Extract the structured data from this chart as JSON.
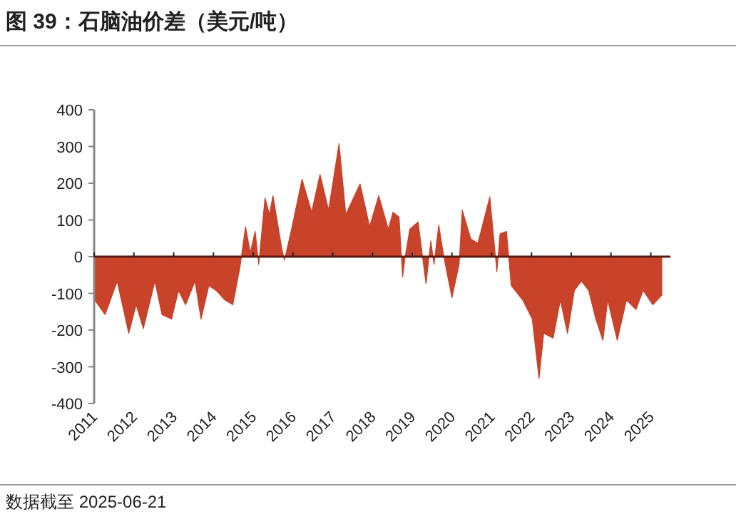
{
  "chart_data": {
    "type": "area",
    "title": "图 39：石脑油价差（美元/吨）",
    "annotations": [
      "数据截至 2025-06-21"
    ],
    "x": [
      "2011-01-05",
      "2011-04-12",
      "2011-08-01",
      "2011-11-15",
      "2012-01-22",
      "2012-03-28",
      "2012-07-12",
      "2012-09-16",
      "2012-12-12",
      "2013-02-14",
      "2013-04-20",
      "2013-07-16",
      "2013-09-09",
      "2013-11-20",
      "2014-01-26",
      "2014-04-16",
      "2014-06-28",
      "2014-09-02",
      "2014-10-23",
      "2014-12-06",
      "2015-01-19",
      "2015-02-21",
      "2015-04-20",
      "2015-05-30",
      "2015-07-02",
      "2015-09-24",
      "2015-10-16",
      "2015-12-20",
      "2016-03-25",
      "2016-06-21",
      "2016-09-06",
      "2016-11-24",
      "2017-02-28",
      "2017-05-01",
      "2017-09-09",
      "2017-12-06",
      "2018-02-28",
      "2018-05-26",
      "2018-07-09",
      "2018-09-02",
      "2018-10-05",
      "2018-10-27",
      "2018-12-10",
      "2019-02-24",
      "2019-05-08",
      "2019-06-21",
      "2019-07-20",
      "2019-09-02",
      "2019-10-16",
      "2020-01-01",
      "2020-03-07",
      "2020-04-05",
      "2020-06-21",
      "2020-08-26",
      "2020-12-14",
      "2021-02-17",
      "2021-03-18",
      "2021-05-16",
      "2021-06-29",
      "2021-10-12",
      "2022-01-08",
      "2022-03-11",
      "2022-04-23",
      "2022-07-19",
      "2022-09-23",
      "2022-11-28",
      "2023-01-30",
      "2023-04-05",
      "2023-06-10",
      "2023-08-15",
      "2023-10-19",
      "2023-12-02",
      "2024-02-28",
      "2024-05-22",
      "2024-08-18",
      "2024-10-23",
      "2025-01-19",
      "2025-04-12"
    ],
    "series": [
      {
        "color": "#c8432a",
        "values": [
          -118,
          -158,
          -67,
          -209,
          -131,
          -196,
          -67,
          -158,
          -170,
          -92,
          -131,
          -67,
          -170,
          -79,
          -92,
          -118,
          -131,
          -28,
          82,
          10,
          69,
          -21,
          160,
          115,
          166,
          17,
          -9,
          75,
          211,
          121,
          224,
          127,
          308,
          115,
          198,
          82,
          166,
          75,
          121,
          108,
          -55,
          -3,
          75,
          95,
          -74,
          43,
          -21,
          86,
          4,
          -112,
          -21,
          127,
          49,
          36,
          163,
          -41,
          62,
          69,
          -79,
          -118,
          -170,
          -332,
          -209,
          -222,
          -118,
          -209,
          -92,
          -67,
          -92,
          -170,
          -228,
          -118,
          -228,
          -118,
          -144,
          -92,
          -131,
          -105
        ]
      }
    ],
    "xlim": [
      "2011-01-01",
      "2025-06-30"
    ],
    "xticks": [
      {
        "value": "2011-01-01",
        "label": "2011"
      },
      {
        "value": "2012-01-01",
        "label": "2012"
      },
      {
        "value": "2013-01-01",
        "label": "2013"
      },
      {
        "value": "2014-01-01",
        "label": "2014"
      },
      {
        "value": "2015-01-01",
        "label": "2015"
      },
      {
        "value": "2016-01-01",
        "label": "2016"
      },
      {
        "value": "2017-01-01",
        "label": "2017"
      },
      {
        "value": "2018-01-01",
        "label": "2018"
      },
      {
        "value": "2019-01-01",
        "label": "2019"
      },
      {
        "value": "2020-01-01",
        "label": "2020"
      },
      {
        "value": "2021-01-01",
        "label": "2021"
      },
      {
        "value": "2022-01-01",
        "label": "2022"
      },
      {
        "value": "2023-01-01",
        "label": "2023"
      },
      {
        "value": "2024-01-01",
        "label": "2024"
      },
      {
        "value": "2025-01-01",
        "label": "2025"
      }
    ],
    "ylim": [
      -400,
      400
    ],
    "yticks": [
      -400,
      -300,
      -200,
      -100,
      0,
      100,
      200,
      300,
      400
    ],
    "grid": false
  }
}
